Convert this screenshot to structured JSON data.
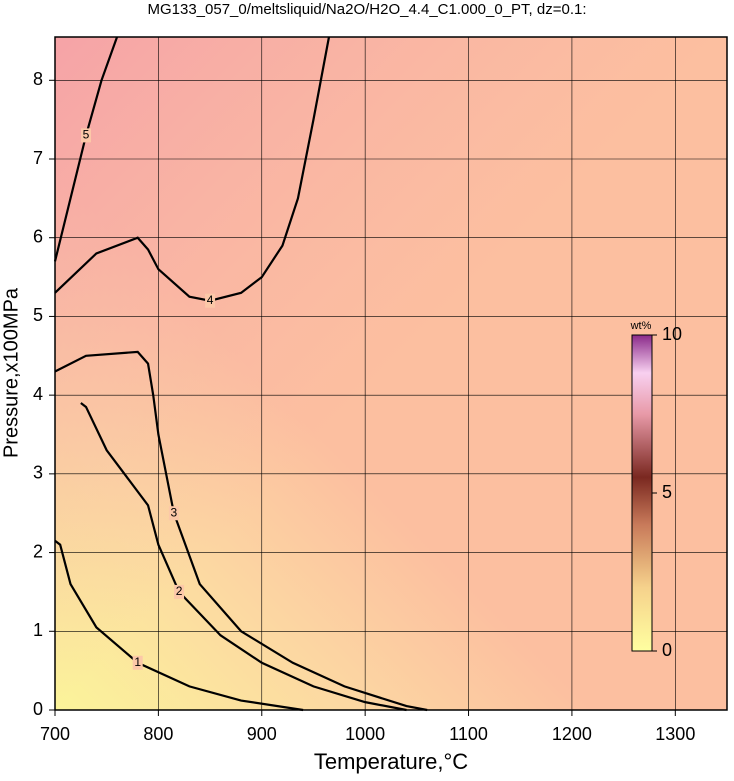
{
  "chart_data": {
    "type": "contour",
    "title": "MG133_057_0/meltsliquid/Na2O/H2O_4.4_C1.000_0_PT, dz=0.1:",
    "x_label": "Temperature,°C",
    "y_label": "Pressure,x100MPa",
    "xlim": [
      700,
      1350
    ],
    "ylim": [
      0,
      8.55
    ],
    "xticks": [
      700,
      800,
      900,
      1000,
      1100,
      1200,
      1300
    ],
    "yticks": [
      0,
      1,
      2,
      3,
      4,
      5,
      6,
      7,
      8
    ],
    "grid": true,
    "contours": [
      {
        "level": 1,
        "x": [
          700,
          705,
          715,
          740,
          780,
          830,
          880,
          940
        ],
        "y": [
          2.15,
          2.1,
          1.6,
          1.05,
          0.6,
          0.3,
          0.12,
          0
        ]
      },
      {
        "level": 2,
        "x": [
          725,
          730,
          750,
          790,
          800,
          820,
          860,
          900,
          950,
          1000,
          1040
        ],
        "y": [
          3.9,
          3.85,
          3.3,
          2.6,
          2.1,
          1.5,
          0.95,
          0.6,
          0.3,
          0.1,
          0
        ]
      },
      {
        "level": 3,
        "x": [
          700,
          730,
          780,
          790,
          795,
          800,
          815,
          840,
          880,
          930,
          980,
          1040,
          1060
        ],
        "y": [
          4.3,
          4.5,
          4.55,
          4.4,
          4.0,
          3.5,
          2.5,
          1.6,
          1.0,
          0.6,
          0.3,
          0.05,
          0
        ]
      },
      {
        "level": 4,
        "x": [
          700,
          740,
          780,
          790,
          800,
          830,
          850,
          880,
          900,
          920,
          935,
          950,
          965
        ],
        "y": [
          5.3,
          5.8,
          6.0,
          5.85,
          5.6,
          5.25,
          5.2,
          5.3,
          5.5,
          5.9,
          6.5,
          7.5,
          8.55
        ]
      },
      {
        "level": 5,
        "x": [
          700,
          715,
          730,
          745,
          760
        ],
        "y": [
          5.7,
          6.5,
          7.3,
          8.0,
          8.55
        ]
      }
    ],
    "colorbar": {
      "label": "wt%",
      "lim": [
        0,
        10
      ],
      "ticks": [
        0,
        5,
        10
      ]
    }
  }
}
